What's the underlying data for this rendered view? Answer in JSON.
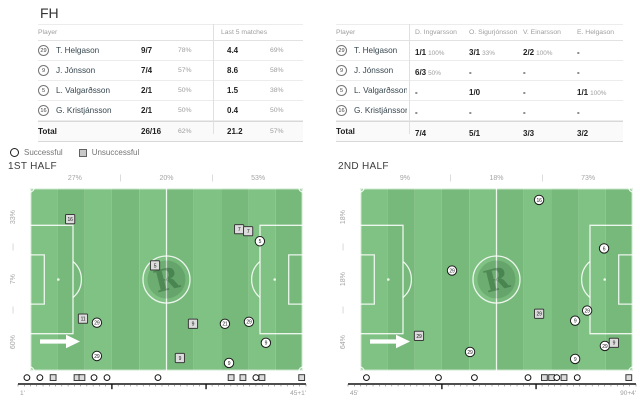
{
  "title": "FH",
  "legend": {
    "successful": "Successful",
    "unsuccessful": "Unsuccessful"
  },
  "left_table": {
    "player_header": "Player",
    "last5_header": "Last 5 matches",
    "rows": [
      {
        "num": "29",
        "name": "T. Helgason",
        "val": "9/7",
        "pct": "78%",
        "l5_val": "4.4",
        "l5_pct": "69%"
      },
      {
        "num": "9",
        "name": "J. Jónsson",
        "val": "7/4",
        "pct": "57%",
        "l5_val": "8.6",
        "l5_pct": "58%"
      },
      {
        "num": "5",
        "name": "L. Valgarðsson",
        "val": "2/1",
        "pct": "50%",
        "l5_val": "1.5",
        "l5_pct": "38%"
      },
      {
        "num": "16",
        "name": "G. Kristjánsson",
        "val": "2/1",
        "pct": "50%",
        "l5_val": "0.4",
        "l5_pct": "50%"
      }
    ],
    "total": {
      "label": "Total",
      "val": "26/16",
      "pct": "62%",
      "l5_val": "21.2",
      "l5_pct": "57%"
    }
  },
  "right_table": {
    "player_header": "Player",
    "col_headers": [
      "D. Ingvarsson",
      "O. Sigurjónsson",
      "V. Einarsson",
      "E. Helgason"
    ],
    "rows": [
      {
        "num": "29",
        "name": "T. Helgason",
        "cells": [
          {
            "val": "1/1",
            "pct": "100%"
          },
          {
            "val": "3/1",
            "pct": "33%"
          },
          {
            "val": "2/2",
            "pct": "100%"
          },
          {
            "val": "-"
          }
        ]
      },
      {
        "num": "9",
        "name": "J. Jónsson",
        "cells": [
          {
            "val": "6/3",
            "pct": "50%"
          },
          {
            "val": "-"
          },
          {
            "val": "-"
          },
          {
            "val": "-"
          }
        ]
      },
      {
        "num": "5",
        "name": "L. Valgarðsson",
        "cells": [
          {
            "val": "-"
          },
          {
            "val": "1/0"
          },
          {
            "val": "-"
          },
          {
            "val": "1/1",
            "pct": "100%"
          }
        ]
      },
      {
        "num": "16",
        "name": "G. Kristjánsson",
        "cells": [
          {
            "val": "-"
          },
          {
            "val": "-"
          },
          {
            "val": "-"
          },
          {
            "val": "-"
          }
        ]
      }
    ],
    "total": {
      "label": "Total",
      "cells": [
        "7/4",
        "5/1",
        "3/3",
        "3/2"
      ]
    }
  },
  "halves": [
    {
      "title": "1ST HALF",
      "top_zones": [
        "27%",
        "20%",
        "53%"
      ],
      "side_zones": [
        "33%",
        "7%",
        "60%"
      ],
      "timeline": {
        "start_label": "1'",
        "end_label": "45+1'",
        "markers": [
          {
            "t": "s",
            "x": 3.1
          },
          {
            "t": "s",
            "x": 7.6
          },
          {
            "t": "f",
            "x": 12.2
          },
          {
            "t": "f",
            "x": 20.5
          },
          {
            "t": "f",
            "x": 22.2
          },
          {
            "t": "s",
            "x": 26.4
          },
          {
            "t": "s",
            "x": 30.9
          },
          {
            "t": "s",
            "x": 48.6
          },
          {
            "t": "f",
            "x": 74.0
          },
          {
            "t": "f",
            "x": 78.1
          },
          {
            "t": "s",
            "x": 82.6
          },
          {
            "t": "f",
            "x": 84.7
          },
          {
            "t": "f",
            "x": 98.5
          }
        ]
      },
      "markers": [
        {
          "t": "f",
          "num": "16",
          "x": 14.7,
          "y": 17.0
        },
        {
          "t": "f",
          "num": "5",
          "x": 45.8,
          "y": 42.3
        },
        {
          "t": "f",
          "num": "11",
          "x": 19.4,
          "y": 71.4
        },
        {
          "t": "s",
          "num": "29",
          "x": 24.5,
          "y": 73.6
        },
        {
          "t": "s",
          "num": "29",
          "x": 24.5,
          "y": 91.8
        },
        {
          "t": "f",
          "num": "9",
          "x": 59.7,
          "y": 74.2
        },
        {
          "t": "f",
          "num": "9",
          "x": 54.9,
          "y": 92.9
        },
        {
          "t": "f",
          "num": "7",
          "x": 76.6,
          "y": 22.5
        },
        {
          "t": "f",
          "num": "7",
          "x": 79.9,
          "y": 23.6
        },
        {
          "t": "s",
          "num": "5",
          "x": 84.2,
          "y": 29.1
        },
        {
          "t": "s",
          "num": "29",
          "x": 80.2,
          "y": 73.1
        },
        {
          "t": "s",
          "num": "21",
          "x": 71.4,
          "y": 74.2
        },
        {
          "t": "s",
          "num": "9",
          "x": 86.4,
          "y": 84.6
        },
        {
          "t": "s",
          "num": "9",
          "x": 72.9,
          "y": 95.6
        }
      ]
    },
    {
      "title": "2ND HALF",
      "top_zones": [
        "9%",
        "18%",
        "73%"
      ],
      "side_zones": [
        "18%",
        "18%",
        "64%"
      ],
      "timeline": {
        "start_label": "45'",
        "end_label": "90+4'",
        "markers": [
          {
            "t": "s",
            "x": 6.4
          },
          {
            "t": "s",
            "x": 31.4
          },
          {
            "t": "s",
            "x": 43.9
          },
          {
            "t": "s",
            "x": 62.5
          },
          {
            "t": "f",
            "x": 68.2
          },
          {
            "t": "f",
            "x": 70.7
          },
          {
            "t": "s",
            "x": 72.5
          },
          {
            "t": "f",
            "x": 75.0
          },
          {
            "t": "s",
            "x": 79.6
          },
          {
            "t": "f",
            "x": 97.5
          }
        ]
      },
      "markers": [
        {
          "t": "s",
          "num": "29",
          "x": 33.7,
          "y": 45.1
        },
        {
          "t": "f",
          "num": "29",
          "x": 21.6,
          "y": 80.8
        },
        {
          "t": "s",
          "num": "29",
          "x": 40.3,
          "y": 89.6
        },
        {
          "t": "s",
          "num": "16",
          "x": 65.6,
          "y": 6.5
        },
        {
          "t": "s",
          "num": "6",
          "x": 89.4,
          "y": 33.0
        },
        {
          "t": "f",
          "num": "29",
          "x": 65.6,
          "y": 68.7
        },
        {
          "t": "s",
          "num": "29",
          "x": 83.2,
          "y": 67.0
        },
        {
          "t": "s",
          "num": "9",
          "x": 78.8,
          "y": 72.5
        },
        {
          "t": "s",
          "num": "29",
          "x": 89.7,
          "y": 86.3
        },
        {
          "t": "f",
          "num": "9",
          "x": 93.0,
          "y": 84.6
        },
        {
          "t": "s",
          "num": "9",
          "x": 78.8,
          "y": 93.4
        }
      ]
    }
  ],
  "colors": {
    "pitch_green_light": "#80c184",
    "pitch_green_dark": "#77b87b",
    "line_white": "rgba(255,255,255,0.85)",
    "marker_fail_fill": "#dcdcdc",
    "marker_stroke": "#1c1c1c"
  }
}
